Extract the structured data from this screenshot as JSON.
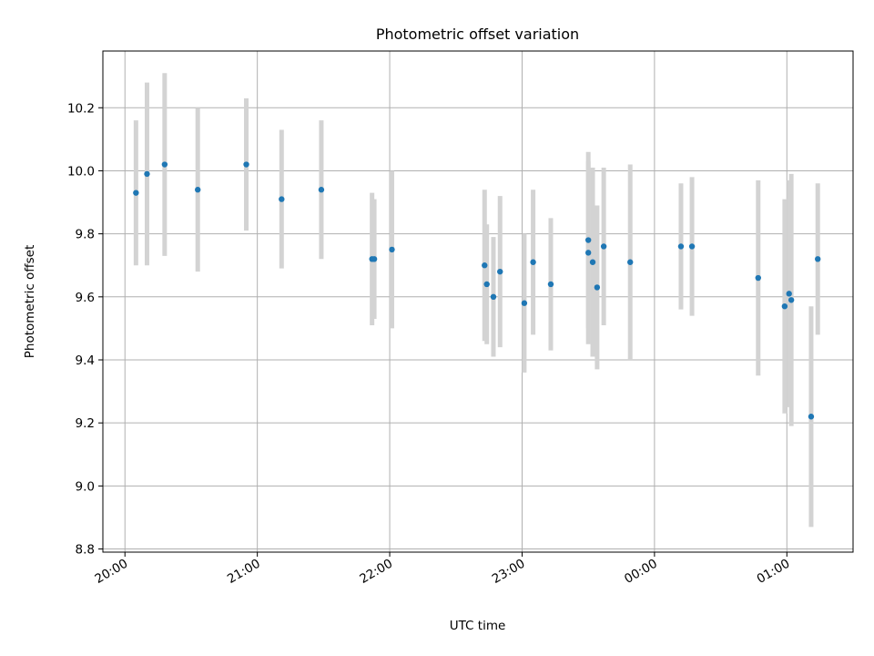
{
  "chart_data": {
    "type": "scatter",
    "title": "Photometric offset variation",
    "xlabel": "UTC time",
    "ylabel": "Photometric offset",
    "x_ticks": [
      "20:00",
      "21:00",
      "22:00",
      "23:00",
      "00:00",
      "01:00"
    ],
    "y_ticks": [
      "8.8",
      "9.0",
      "9.2",
      "9.4",
      "9.6",
      "9.8",
      "10.0",
      "10.2"
    ],
    "xlim": [
      "19:50",
      "01:30"
    ],
    "ylim": [
      8.79,
      10.38
    ],
    "grid": true,
    "point_color": "#1f77b4",
    "errorbar_color": "#d3d3d3",
    "series": [
      {
        "x": [
          "20:05",
          "20:10",
          "20:18",
          "20:33",
          "20:55",
          "21:11",
          "21:29",
          "21:52",
          "21:53",
          "22:01",
          "22:43",
          "22:44",
          "22:47",
          "22:50",
          "23:01",
          "23:05",
          "23:13",
          "23:30",
          "23:30",
          "23:32",
          "23:34",
          "23:37",
          "23:49",
          "00:12",
          "00:17",
          "00:47",
          "00:59",
          "01:01",
          "01:02",
          "01:11",
          "01:14"
        ],
        "y": [
          9.93,
          9.99,
          10.02,
          9.94,
          10.02,
          9.91,
          9.94,
          9.72,
          9.72,
          9.75,
          9.7,
          9.64,
          9.6,
          9.68,
          9.58,
          9.71,
          9.64,
          9.78,
          9.74,
          9.71,
          9.63,
          9.76,
          9.71,
          9.76,
          9.76,
          9.66,
          9.57,
          9.61,
          9.59,
          9.22,
          9.72
        ],
        "yerr": [
          0.23,
          0.29,
          0.29,
          0.26,
          0.21,
          0.22,
          0.22,
          0.21,
          0.19,
          0.25,
          0.24,
          0.19,
          0.19,
          0.24,
          0.22,
          0.23,
          0.21,
          0.28,
          0.29,
          0.3,
          0.26,
          0.25,
          0.31,
          0.2,
          0.22,
          0.31,
          0.34,
          0.36,
          0.4,
          0.35,
          0.24
        ]
      }
    ]
  }
}
